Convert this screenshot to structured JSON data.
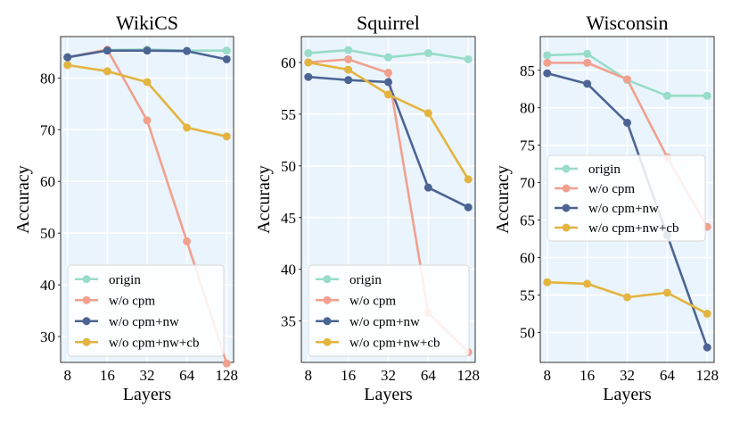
{
  "ylabel": "Accuracy",
  "xlabel": "Layers",
  "colors": {
    "origin": "#98dcc9",
    "wo_cpm": "#f1a08e",
    "wo_cpm_nw": "#4c6494",
    "wo_cpm_nw_cb": "#e3b440",
    "plot_bg": "#eaf4fd"
  },
  "chart_data": [
    {
      "type": "line",
      "title": "WikiCS",
      "x": [
        8,
        16,
        32,
        64,
        128
      ],
      "xticklabels": [
        "8",
        "16",
        "32",
        "64",
        "128"
      ],
      "ylim": [
        25,
        88
      ],
      "yticks": [
        30,
        40,
        50,
        60,
        70,
        80
      ],
      "legend_position": "lower-left",
      "series": [
        {
          "name": "origin",
          "values": [
            84.0,
            85.4,
            85.5,
            85.3,
            85.3
          ]
        },
        {
          "name": "w/o cpm",
          "values": [
            84.0,
            85.5,
            71.8,
            48.4,
            24.8
          ]
        },
        {
          "name": "w/o cpm+nw",
          "values": [
            84.0,
            85.3,
            85.3,
            85.2,
            83.6
          ]
        },
        {
          "name": "w/o cpm+nw+cb",
          "values": [
            82.5,
            81.3,
            79.2,
            70.4,
            68.7
          ]
        }
      ]
    },
    {
      "type": "line",
      "title": "Squirrel",
      "x": [
        8,
        16,
        32,
        64,
        128
      ],
      "xticklabels": [
        "8",
        "16",
        "32",
        "64",
        "128"
      ],
      "ylim": [
        31,
        62.5
      ],
      "yticks": [
        35,
        40,
        45,
        50,
        55,
        60
      ],
      "legend_position": "lower-left",
      "series": [
        {
          "name": "origin",
          "values": [
            60.9,
            61.2,
            60.5,
            60.9,
            60.3
          ]
        },
        {
          "name": "w/o cpm",
          "values": [
            60.0,
            60.3,
            59.0,
            35.8,
            32.0
          ]
        },
        {
          "name": "w/o cpm+nw",
          "values": [
            58.6,
            58.3,
            58.1,
            47.9,
            46.0
          ]
        },
        {
          "name": "w/o cpm+nw+cb",
          "values": [
            60.0,
            59.3,
            56.9,
            55.1,
            48.7
          ]
        }
      ]
    },
    {
      "type": "line",
      "title": "Wisconsin",
      "x": [
        8,
        16,
        32,
        64,
        128
      ],
      "xticklabels": [
        "8",
        "16",
        "32",
        "64",
        "128"
      ],
      "ylim": [
        46,
        89.5
      ],
      "yticks": [
        50,
        55,
        60,
        65,
        70,
        75,
        80,
        85
      ],
      "legend_position": "center-left",
      "series": [
        {
          "name": "origin",
          "values": [
            87.0,
            87.2,
            83.7,
            81.6,
            81.6
          ]
        },
        {
          "name": "w/o cpm",
          "values": [
            86.0,
            86.0,
            83.8,
            73.4,
            64.1
          ]
        },
        {
          "name": "w/o cpm+nw",
          "values": [
            84.6,
            83.2,
            78.0,
            63.0,
            48.0
          ]
        },
        {
          "name": "w/o cpm+nw+cb",
          "values": [
            56.7,
            56.5,
            54.7,
            55.3,
            52.5
          ]
        }
      ]
    }
  ]
}
